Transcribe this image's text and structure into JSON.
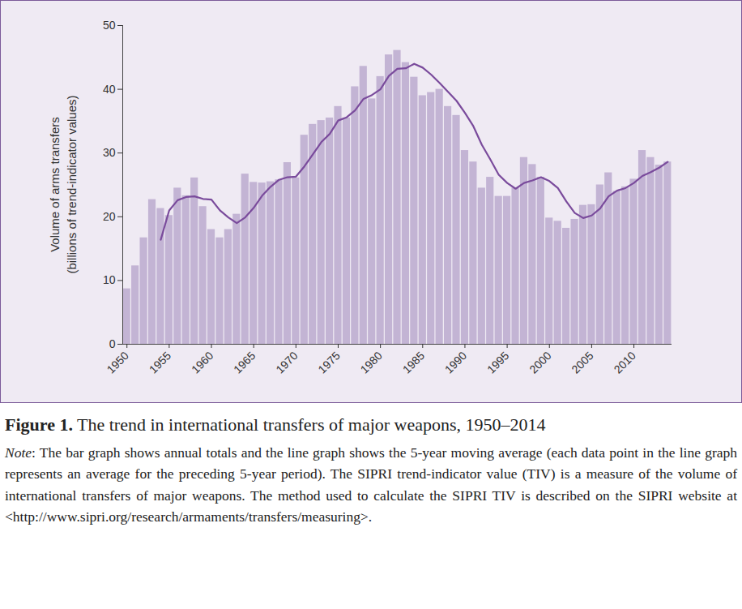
{
  "chart_data": {
    "type": "bar",
    "figure_label": "Figure 1.",
    "title": "The trend in international transfers of major weapons, 1950–2014",
    "note_label": "Note",
    "note": ": The bar graph shows annual totals and the line graph shows the 5-year moving average (each data point in the line graph represents an average for the preceding 5-year period). The SIPRI trend-indicator value (TIV) is a measure of the volume of international transfers of major weapons. The method used to calculate the SIPRI TIV is described on the SIPRI website at <http://www.sipri.org/research/armaments/transfers/measuring>.",
    "y_label": [
      "Volume of arms transfers",
      "(billions of trend-indicator values)"
    ],
    "x": [
      1950,
      1951,
      1952,
      1953,
      1954,
      1955,
      1956,
      1957,
      1958,
      1959,
      1960,
      1961,
      1962,
      1963,
      1964,
      1965,
      1966,
      1967,
      1968,
      1969,
      1970,
      1971,
      1972,
      1973,
      1974,
      1975,
      1976,
      1977,
      1978,
      1979,
      1980,
      1981,
      1982,
      1983,
      1984,
      1985,
      1986,
      1987,
      1988,
      1989,
      1990,
      1991,
      1992,
      1993,
      1994,
      1995,
      1996,
      1997,
      1998,
      1999,
      2000,
      2001,
      2002,
      2003,
      2004,
      2005,
      2006,
      2007,
      2008,
      2009,
      2010,
      2011,
      2012,
      2013,
      2014
    ],
    "series": [
      {
        "type": "bar",
        "color": "#c3b4d4",
        "values": [
          8.7,
          12.3,
          16.7,
          22.7,
          21.3,
          20.2,
          24.5,
          23.3,
          26.1,
          21.6,
          18.0,
          16.7,
          18.0,
          20.4,
          26.7,
          25.4,
          25.3,
          25.5,
          25.8,
          28.5,
          26.1,
          32.8,
          34.5,
          35.1,
          35.5,
          37.3,
          35.5,
          40.4,
          43.6,
          38.5,
          42.0,
          45.4,
          46.1,
          44.2,
          41.9,
          39.0,
          39.5,
          40.0,
          37.3,
          35.9,
          30.4,
          28.6,
          24.5,
          26.2,
          23.2,
          23.2,
          24.5,
          29.3,
          28.2,
          26.2,
          19.8,
          19.3,
          18.2,
          19.6,
          21.8,
          21.9,
          25.0,
          26.9,
          24.0,
          24.7,
          25.9,
          30.4,
          29.3,
          28.1,
          28.6
        ]
      },
      {
        "type": "line",
        "color": "#7a4b9c",
        "values": [
          null,
          null,
          null,
          null,
          16.4,
          21.0,
          22.6,
          23.1,
          23.2,
          22.8,
          22.7,
          21.0,
          19.9,
          19.0,
          19.9,
          21.4,
          23.3,
          24.7,
          25.8,
          26.2,
          26.3,
          27.9,
          29.8,
          31.7,
          33.0,
          35.1,
          35.6,
          36.7,
          38.5,
          39.1,
          40.0,
          42.1,
          43.2,
          43.3,
          44.0,
          43.4,
          42.3,
          41.0,
          39.6,
          38.2,
          36.3,
          34.2,
          31.3,
          29.0,
          26.6,
          25.3,
          24.4,
          25.3,
          25.7,
          26.2,
          25.6,
          24.5,
          22.4,
          20.6,
          19.8,
          20.2,
          21.3,
          23.2,
          24.1,
          24.5,
          25.3,
          26.4,
          27.0,
          27.7,
          28.6
        ]
      }
    ],
    "xlim": [
      1949.5,
      2014.5
    ],
    "xticks": [
      1950,
      1955,
      1960,
      1965,
      1970,
      1975,
      1980,
      1985,
      1990,
      1995,
      2000,
      2005,
      2010
    ],
    "ylim": [
      0,
      50
    ],
    "yticks": [
      0,
      10,
      20,
      30,
      40,
      50
    ],
    "grid": false
  }
}
